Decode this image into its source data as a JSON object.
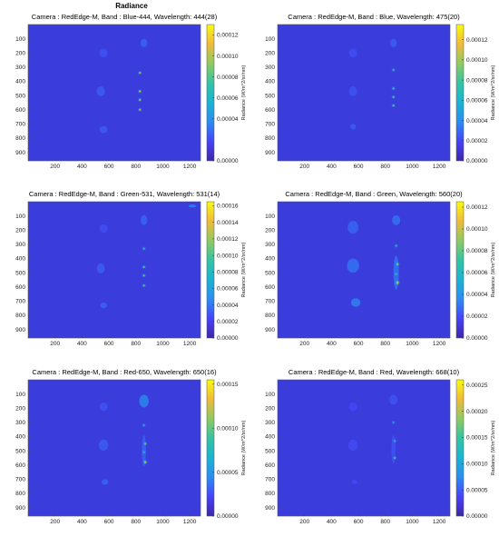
{
  "figure": {
    "title": "Radiance"
  },
  "colors": {
    "background": "#3a3ddc",
    "colormap": [
      "#3e26a8",
      "#4743f8",
      "#2c8cf2",
      "#1bb3d3",
      "#35c3a4",
      "#8fca62",
      "#f0ba3b",
      "#f9fb0e"
    ]
  },
  "chart_data": [
    {
      "type": "heatmap",
      "title": "Camera : RedEdge-M, Band : Blue-444, Wavelength: 444(28)",
      "x_ticks": [
        200,
        400,
        600,
        800,
        1000,
        1200
      ],
      "y_ticks": [
        100,
        200,
        300,
        400,
        500,
        600,
        700,
        800,
        900
      ],
      "xlim": [
        0,
        1280
      ],
      "ylim": [
        0,
        960
      ],
      "colorbar": {
        "label": "Radiance (W/m^2/sr/nm)",
        "ticks": [
          "0.00000",
          "0.00004",
          "0.00006",
          "0.00008",
          "0.00010",
          "0.00012"
        ],
        "range": [
          0,
          0.00013
        ]
      },
      "features": [
        {
          "x": 560,
          "y": 200,
          "w": 60,
          "h": 60,
          "v": 0.18
        },
        {
          "x": 540,
          "y": 470,
          "w": 60,
          "h": 70,
          "v": 0.2
        },
        {
          "x": 560,
          "y": 740,
          "w": 60,
          "h": 50,
          "v": 0.2
        },
        {
          "x": 860,
          "y": 130,
          "w": 50,
          "h": 60,
          "v": 0.22
        },
        {
          "x": 830,
          "y": 340,
          "w": 6,
          "h": 6,
          "v": 0.8
        },
        {
          "x": 830,
          "y": 470,
          "w": 6,
          "h": 6,
          "v": 0.9
        },
        {
          "x": 830,
          "y": 530,
          "w": 6,
          "h": 6,
          "v": 0.85
        },
        {
          "x": 830,
          "y": 600,
          "w": 6,
          "h": 6,
          "v": 0.85
        }
      ]
    },
    {
      "type": "heatmap",
      "title": "Camera : RedEdge-M, Band : Blue, Wavelength: 475(20)",
      "x_ticks": [
        200,
        400,
        600,
        800,
        1000,
        1200
      ],
      "y_ticks": [
        100,
        200,
        300,
        400,
        500,
        600,
        700,
        800,
        900
      ],
      "xlim": [
        0,
        1280
      ],
      "ylim": [
        0,
        960
      ],
      "colorbar": {
        "label": "Radiance (W/m^2/sr/nm)",
        "ticks": [
          "0.00000",
          "0.00002",
          "0.00004",
          "0.00006",
          "0.00008",
          "0.00010",
          "0.00012"
        ],
        "range": [
          0,
          0.000135
        ]
      },
      "features": [
        {
          "x": 560,
          "y": 200,
          "w": 60,
          "h": 60,
          "v": 0.17
        },
        {
          "x": 560,
          "y": 470,
          "w": 60,
          "h": 70,
          "v": 0.18
        },
        {
          "x": 560,
          "y": 720,
          "w": 40,
          "h": 40,
          "v": 0.2
        },
        {
          "x": 860,
          "y": 130,
          "w": 50,
          "h": 60,
          "v": 0.2
        },
        {
          "x": 860,
          "y": 320,
          "w": 6,
          "h": 6,
          "v": 0.6
        },
        {
          "x": 860,
          "y": 450,
          "w": 6,
          "h": 6,
          "v": 0.7
        },
        {
          "x": 860,
          "y": 510,
          "w": 6,
          "h": 6,
          "v": 0.7
        },
        {
          "x": 860,
          "y": 570,
          "w": 6,
          "h": 6,
          "v": 0.7
        }
      ]
    },
    {
      "type": "heatmap",
      "title": "Camera : RedEdge-M, Band : Green-531, Wavelength: 531(14)",
      "x_ticks": [
        200,
        400,
        600,
        800,
        1000,
        1200
      ],
      "y_ticks": [
        100,
        200,
        300,
        400,
        500,
        600,
        700,
        800,
        900
      ],
      "xlim": [
        0,
        1280
      ],
      "ylim": [
        0,
        960
      ],
      "colorbar": {
        "label": "Radiance (W/m^2/sr/nm)",
        "ticks": [
          "0.00000",
          "0.00002",
          "0.00004",
          "0.00006",
          "0.00008",
          "0.00010",
          "0.00012",
          "0.00014",
          "0.00016"
        ],
        "range": [
          0,
          0.000165
        ]
      },
      "features": [
        {
          "x": 560,
          "y": 190,
          "w": 60,
          "h": 60,
          "v": 0.17
        },
        {
          "x": 540,
          "y": 470,
          "w": 60,
          "h": 70,
          "v": 0.2
        },
        {
          "x": 560,
          "y": 730,
          "w": 50,
          "h": 40,
          "v": 0.22
        },
        {
          "x": 860,
          "y": 130,
          "w": 50,
          "h": 70,
          "v": 0.22
        },
        {
          "x": 1220,
          "y": 30,
          "w": 60,
          "h": 20,
          "v": 0.3
        },
        {
          "x": 860,
          "y": 330,
          "w": 6,
          "h": 6,
          "v": 0.6
        },
        {
          "x": 860,
          "y": 460,
          "w": 6,
          "h": 6,
          "v": 0.7
        },
        {
          "x": 860,
          "y": 520,
          "w": 6,
          "h": 6,
          "v": 0.7
        },
        {
          "x": 860,
          "y": 590,
          "w": 6,
          "h": 6,
          "v": 0.7
        }
      ]
    },
    {
      "type": "heatmap",
      "title": "Camera : RedEdge-M, Band : Green, Wavelength: 560(20)",
      "x_ticks": [
        200,
        400,
        600,
        800,
        1000,
        1200
      ],
      "y_ticks": [
        100,
        200,
        300,
        400,
        500,
        600,
        700,
        800,
        900
      ],
      "xlim": [
        0,
        1280
      ],
      "ylim": [
        0,
        960
      ],
      "colorbar": {
        "label": "Radiance (W/m^2/sr/nm)",
        "ticks": [
          "0.00000",
          "0.00002",
          "0.00004",
          "0.00006",
          "0.00008",
          "0.00010",
          "0.00012"
        ],
        "range": [
          0,
          0.000125
        ]
      },
      "features": [
        {
          "x": 560,
          "y": 180,
          "w": 80,
          "h": 90,
          "v": 0.22
        },
        {
          "x": 560,
          "y": 450,
          "w": 90,
          "h": 100,
          "v": 0.25
        },
        {
          "x": 580,
          "y": 710,
          "w": 70,
          "h": 60,
          "v": 0.28
        },
        {
          "x": 880,
          "y": 130,
          "w": 60,
          "h": 70,
          "v": 0.25
        },
        {
          "x": 880,
          "y": 500,
          "w": 40,
          "h": 240,
          "v": 0.25
        },
        {
          "x": 880,
          "y": 310,
          "w": 8,
          "h": 8,
          "v": 0.55
        },
        {
          "x": 890,
          "y": 440,
          "w": 16,
          "h": 16,
          "v": 0.75
        },
        {
          "x": 880,
          "y": 510,
          "w": 8,
          "h": 8,
          "v": 0.6
        },
        {
          "x": 890,
          "y": 570,
          "w": 18,
          "h": 18,
          "v": 0.85
        }
      ]
    },
    {
      "type": "heatmap",
      "title": "Camera : RedEdge-M, Band : Red-650, Wavelength: 650(16)",
      "x_ticks": [
        200,
        400,
        600,
        800,
        1000,
        1200
      ],
      "y_ticks": [
        100,
        200,
        300,
        400,
        500,
        600,
        700,
        800,
        900
      ],
      "xlim": [
        0,
        1280
      ],
      "ylim": [
        0,
        960
      ],
      "colorbar": {
        "label": "Radiance (W/m^2/sr/nm)",
        "ticks": [
          "0.00000",
          "0.00005",
          "0.00010",
          "0.00015"
        ],
        "range": [
          0,
          0.000155
        ]
      },
      "features": [
        {
          "x": 560,
          "y": 190,
          "w": 60,
          "h": 60,
          "v": 0.18
        },
        {
          "x": 560,
          "y": 460,
          "w": 70,
          "h": 80,
          "v": 0.2
        },
        {
          "x": 570,
          "y": 720,
          "w": 50,
          "h": 40,
          "v": 0.22
        },
        {
          "x": 860,
          "y": 150,
          "w": 70,
          "h": 90,
          "v": 0.3
        },
        {
          "x": 860,
          "y": 500,
          "w": 30,
          "h": 220,
          "v": 0.22
        },
        {
          "x": 860,
          "y": 320,
          "w": 8,
          "h": 8,
          "v": 0.5
        },
        {
          "x": 870,
          "y": 450,
          "w": 14,
          "h": 14,
          "v": 0.7
        },
        {
          "x": 860,
          "y": 510,
          "w": 8,
          "h": 8,
          "v": 0.55
        },
        {
          "x": 870,
          "y": 580,
          "w": 16,
          "h": 16,
          "v": 0.85
        }
      ]
    },
    {
      "type": "heatmap",
      "title": "Camera : RedEdge-M, Band : Red, Wavelength: 668(10)",
      "x_ticks": [
        200,
        400,
        600,
        800,
        1000,
        1200
      ],
      "y_ticks": [
        100,
        200,
        300,
        400,
        500,
        600,
        700,
        800,
        900
      ],
      "xlim": [
        0,
        1280
      ],
      "ylim": [
        0,
        960
      ],
      "colorbar": {
        "label": "Radiance (W/m^2/sr/nm)",
        "ticks": [
          "0.00000",
          "0.00005",
          "0.00010",
          "0.00015",
          "0.00020",
          "0.00025"
        ],
        "range": [
          0,
          0.00026
        ]
      },
      "features": [
        {
          "x": 560,
          "y": 190,
          "w": 60,
          "h": 60,
          "v": 0.15
        },
        {
          "x": 560,
          "y": 460,
          "w": 70,
          "h": 80,
          "v": 0.16
        },
        {
          "x": 570,
          "y": 720,
          "w": 40,
          "h": 30,
          "v": 0.16
        },
        {
          "x": 860,
          "y": 140,
          "w": 60,
          "h": 70,
          "v": 0.18
        },
        {
          "x": 860,
          "y": 490,
          "w": 30,
          "h": 200,
          "v": 0.18
        },
        {
          "x": 860,
          "y": 300,
          "w": 7,
          "h": 7,
          "v": 0.45
        },
        {
          "x": 870,
          "y": 430,
          "w": 12,
          "h": 12,
          "v": 0.6
        },
        {
          "x": 870,
          "y": 550,
          "w": 14,
          "h": 14,
          "v": 0.65
        }
      ]
    }
  ]
}
